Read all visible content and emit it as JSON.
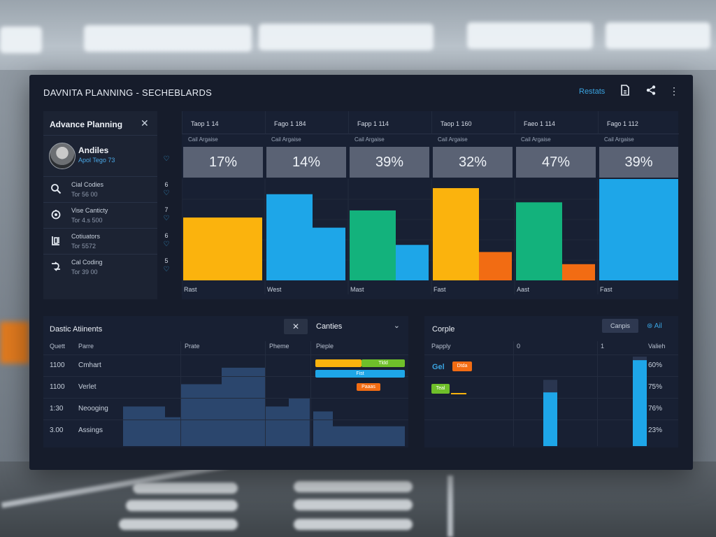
{
  "app": {
    "title": "DAVNITA PLANNING - SECHEBLARDS",
    "restate_label": "Restats",
    "icons": [
      "document-icon",
      "share-icon",
      "more-vertical-icon"
    ]
  },
  "planning": {
    "title": "Advance Planning",
    "profile": {
      "name": "Andiles",
      "sub": "Apol Tego 73"
    },
    "items": [
      {
        "icon": "search-icon",
        "label": "Cial Codies",
        "sub": "Tor 56 00",
        "count": "6"
      },
      {
        "icon": "settings-icon",
        "label": "Vise Canticty",
        "sub": "Tor 4.s 500",
        "count": "7"
      },
      {
        "icon": "bucket-icon",
        "label": "Cotiuators",
        "sub": "Tor 5572",
        "count": "6"
      },
      {
        "icon": "flow-icon",
        "label": "Cal Coding",
        "sub": "Tor 39 00",
        "count": "5"
      }
    ]
  },
  "columns": {
    "sub_label": "Cail Argaise",
    "items": [
      {
        "header": "Taop 1 14",
        "pct": "17%",
        "footer": "Rast"
      },
      {
        "header": "Fago 1 184",
        "pct": "14%",
        "footer": "West"
      },
      {
        "header": "Fapp 1 114",
        "pct": "39%",
        "footer": "Mast"
      },
      {
        "header": "Taop 1 160",
        "pct": "32%",
        "footer": "Fast"
      },
      {
        "header": "Faeo 1 114",
        "pct": "47%",
        "footer": "Aast"
      },
      {
        "header": "Fago 1 112",
        "pct": "39%",
        "footer": "Fast"
      }
    ]
  },
  "chart_data": {
    "type": "bar",
    "categories": [
      "Taop 1 14",
      "Fago 1 184",
      "Fapp 1 114",
      "Taop 1 160",
      "Faeo 1 114",
      "Fago 1 112"
    ],
    "ylim": [
      0,
      100
    ],
    "grid": true,
    "series": [
      {
        "values": [
          62,
          85,
          69,
          91,
          77,
          100
        ],
        "colors": [
          "#fbb30d",
          "#1ea6e8",
          "#13b27c",
          "#fbb30d",
          "#13b27c",
          "#1ea6e8"
        ]
      },
      {
        "values": [
          0,
          52,
          35,
          28,
          16,
          0
        ],
        "colors": [
          "#fbb30d",
          "#1ea6e8",
          "#1ea6e8",
          "#f26c13",
          "#f26c13",
          "#1ea6e8"
        ]
      }
    ]
  },
  "data_panel": {
    "title": "Dastic Atiinents",
    "close_label": "✕",
    "select_label": "Canties",
    "headers": [
      "Quett",
      "Parre",
      "Prate",
      "Pheme",
      "Pieple"
    ],
    "rows": [
      {
        "q": "1100",
        "name": "Cmhart"
      },
      {
        "q": "1100",
        "name": "Verlet"
      },
      {
        "q": "1:30",
        "name": "Neooging"
      },
      {
        "q": "3.00",
        "name": "Assings"
      }
    ],
    "tags": [
      {
        "text": "Tldd",
        "color": "#6fbf2a"
      },
      {
        "text": "Fist",
        "color": "#1ea6e8"
      },
      {
        "text": "Paaas",
        "color": "#f26c13"
      }
    ],
    "area_levels": [
      0.48,
      0.35,
      0.75,
      0.95,
      0.48,
      0.58,
      0.42,
      0.24
    ],
    "area_color": "#2d4a73"
  },
  "compl_panel": {
    "title": "Corple",
    "button_label": "Canpis",
    "all_label": "Ail",
    "headers": [
      "Papply",
      "0",
      "1",
      "Valieh"
    ],
    "values": [
      "60%",
      "75%",
      "76%",
      "23%"
    ],
    "legend": [
      {
        "text": "Gel",
        "color": "#3aa3e0"
      },
      {
        "text": "Dtda",
        "color": "#f26c13"
      },
      {
        "text": "Teal",
        "color": "#6fbf2a"
      }
    ],
    "bars": [
      0.6,
      0.96
    ]
  }
}
